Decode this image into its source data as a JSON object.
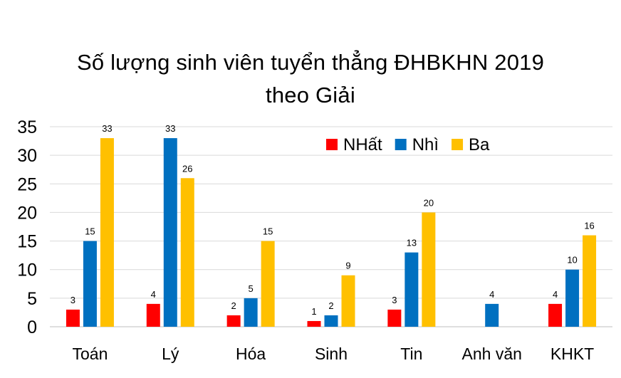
{
  "chart_data": {
    "type": "bar",
    "title_lines": [
      "Số lượng sinh viên tuyển thẳng ĐHBKHN 2019",
      "theo Giải"
    ],
    "xlabel": "",
    "ylabel": "",
    "categories": [
      "Toán",
      "Lý",
      "Hóa",
      "Sinh",
      "Tin",
      "Anh văn",
      "KHKT"
    ],
    "series": [
      {
        "name": "NHất",
        "color": "#ff0000",
        "values": [
          3,
          4,
          2,
          1,
          3,
          null,
          4
        ]
      },
      {
        "name": "Nhì",
        "color": "#0070c0",
        "values": [
          15,
          33,
          5,
          2,
          13,
          4,
          10
        ]
      },
      {
        "name": "Ba",
        "color": "#ffc000",
        "values": [
          33,
          26,
          15,
          9,
          20,
          null,
          16
        ]
      }
    ],
    "ylim": [
      0,
      35
    ],
    "yticks": [
      0,
      5,
      10,
      15,
      20,
      25,
      30,
      35
    ],
    "grid": true,
    "legend": "top-right"
  }
}
